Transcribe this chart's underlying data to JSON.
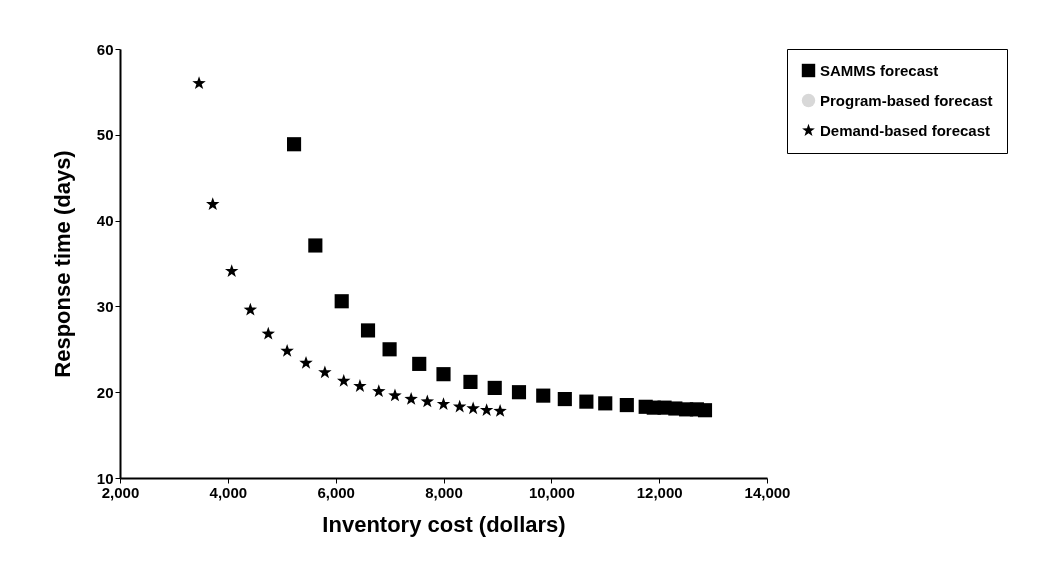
{
  "chart_data": {
    "type": "scatter",
    "xlabel": "Inventory cost (dollars)",
    "ylabel": "Response time (days)",
    "xlim": [
      2000,
      14000
    ],
    "ylim": [
      10,
      60
    ],
    "xticks": [
      {
        "value": 2000,
        "label": "2,000"
      },
      {
        "value": 4000,
        "label": "4,000"
      },
      {
        "value": 6000,
        "label": "6,000"
      },
      {
        "value": 8000,
        "label": "8,000"
      },
      {
        "value": 10000,
        "label": "10,000"
      },
      {
        "value": 12000,
        "label": "12,000"
      },
      {
        "value": 14000,
        "label": "14,000"
      }
    ],
    "yticks": [
      10,
      20,
      30,
      40,
      50,
      60
    ],
    "grid": false,
    "legend": "right",
    "series": [
      {
        "name": "SAMMS forecast",
        "color": "#000000",
        "marker": "square",
        "x": [
          5228,
          5623,
          6112,
          6600,
          7000,
          7550,
          8000,
          8500,
          8950,
          9400,
          9850,
          10250,
          10650,
          11000,
          11400,
          11750,
          11900,
          12100,
          12300,
          12500,
          12700,
          12850
        ],
        "values": [
          48.9,
          37.1,
          30.6,
          27.2,
          25.0,
          23.3,
          22.1,
          21.2,
          20.5,
          20.0,
          19.6,
          19.2,
          18.9,
          18.7,
          18.5,
          18.3,
          18.2,
          18.2,
          18.1,
          18.0,
          18.0,
          17.9
        ]
      },
      {
        "name": "Program-based forecast",
        "color": "#d8d8d8",
        "marker": "circle"
      },
      {
        "name": "Demand-based forecast",
        "color": "#000000",
        "marker": "star",
        "x": [
          3466,
          3720,
          4072,
          4418,
          4750,
          5100,
          5450,
          5800,
          6150,
          6450,
          6800,
          7100,
          7400,
          7700,
          8000,
          8300,
          8550,
          8800,
          9050
        ],
        "values": [
          56.0,
          41.9,
          34.1,
          29.6,
          26.8,
          24.8,
          23.4,
          22.3,
          21.3,
          20.7,
          20.1,
          19.6,
          19.2,
          18.9,
          18.6,
          18.3,
          18.1,
          17.9,
          17.8
        ]
      }
    ]
  }
}
